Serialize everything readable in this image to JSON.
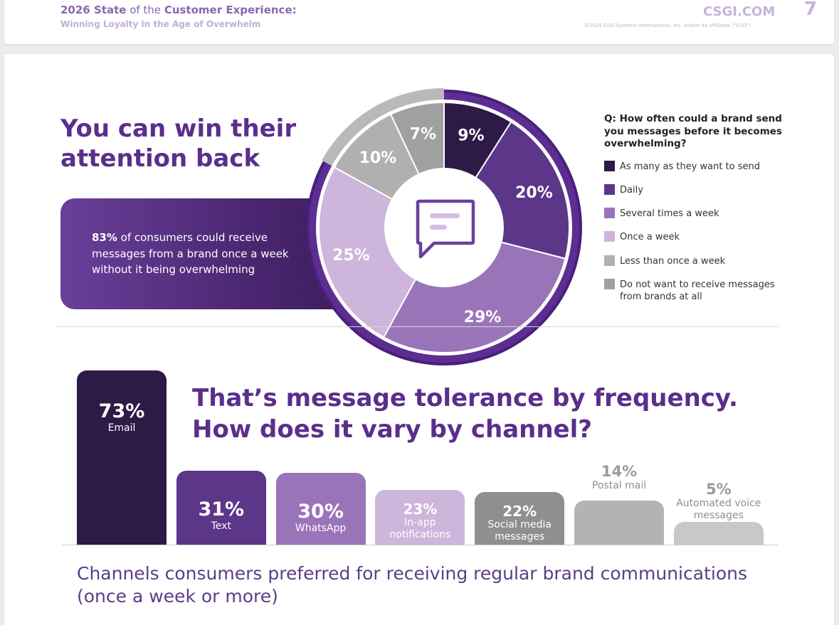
{
  "header": {
    "title_bold_1": "2026 State",
    "title_thin": " of the ",
    "title_bold_2": "Customer Experience:",
    "subtitle": "Winning Loyalty in the Age of Overwhelm",
    "site": "CSGI.COM",
    "copyright": "©2025 CSG Systems International, Inc. and/or its affiliates (\"CSG\")",
    "page_number": "7"
  },
  "section1": {
    "headline": "You can win their attention back",
    "callout_bold": "83%",
    "callout_rest": " of consumers could receive messages from a brand once a week without it being overwhelming"
  },
  "chart_data": [
    {
      "type": "pie",
      "title": "Q: How often could a brand send you messages before it becomes overwhelming?",
      "slices": [
        {
          "label": "As many as they want to send",
          "value": 9,
          "display": "9%",
          "color": "#2d1a47"
        },
        {
          "label": "Daily",
          "value": 20,
          "display": "20%",
          "color": "#5b3689"
        },
        {
          "label": "Several times a week",
          "value": 29,
          "display": "29%",
          "color": "#9a74b9"
        },
        {
          "label": "Once a week",
          "value": 25,
          "display": "25%",
          "color": "#cdb5db"
        },
        {
          "label": "Less than once a week",
          "value": 10,
          "display": "10%",
          "color": "#b0b0b0"
        },
        {
          "label": "Do not want to receive messages from brands at all",
          "value": 7,
          "display": "7%",
          "color": "#a0a0a0"
        }
      ],
      "legend_position": "right"
    },
    {
      "type": "bar",
      "title": "That’s message tolerance by frequency. How does it vary by channel?",
      "subtitle": "Channels consumers preferred for receiving regular brand communications (once a week or more)",
      "categories": [
        "Email",
        "Text",
        "WhatsApp",
        "In-app notifications",
        "Social media messages",
        "Postal mail",
        "Automated voice messages"
      ],
      "values": [
        73,
        31,
        30,
        23,
        22,
        14,
        5
      ],
      "labels": [
        "73%",
        "31%",
        "30%",
        "23%",
        "22%",
        "14%",
        "5%"
      ],
      "colors": [
        "#2d1a47",
        "#5b3689",
        "#9a74b9",
        "#cdb5db",
        "#8f8f8f",
        "#b3b3b3",
        "#c8c8c8"
      ]
    }
  ],
  "icons": {
    "pie_center": "chat-bubble-icon"
  }
}
